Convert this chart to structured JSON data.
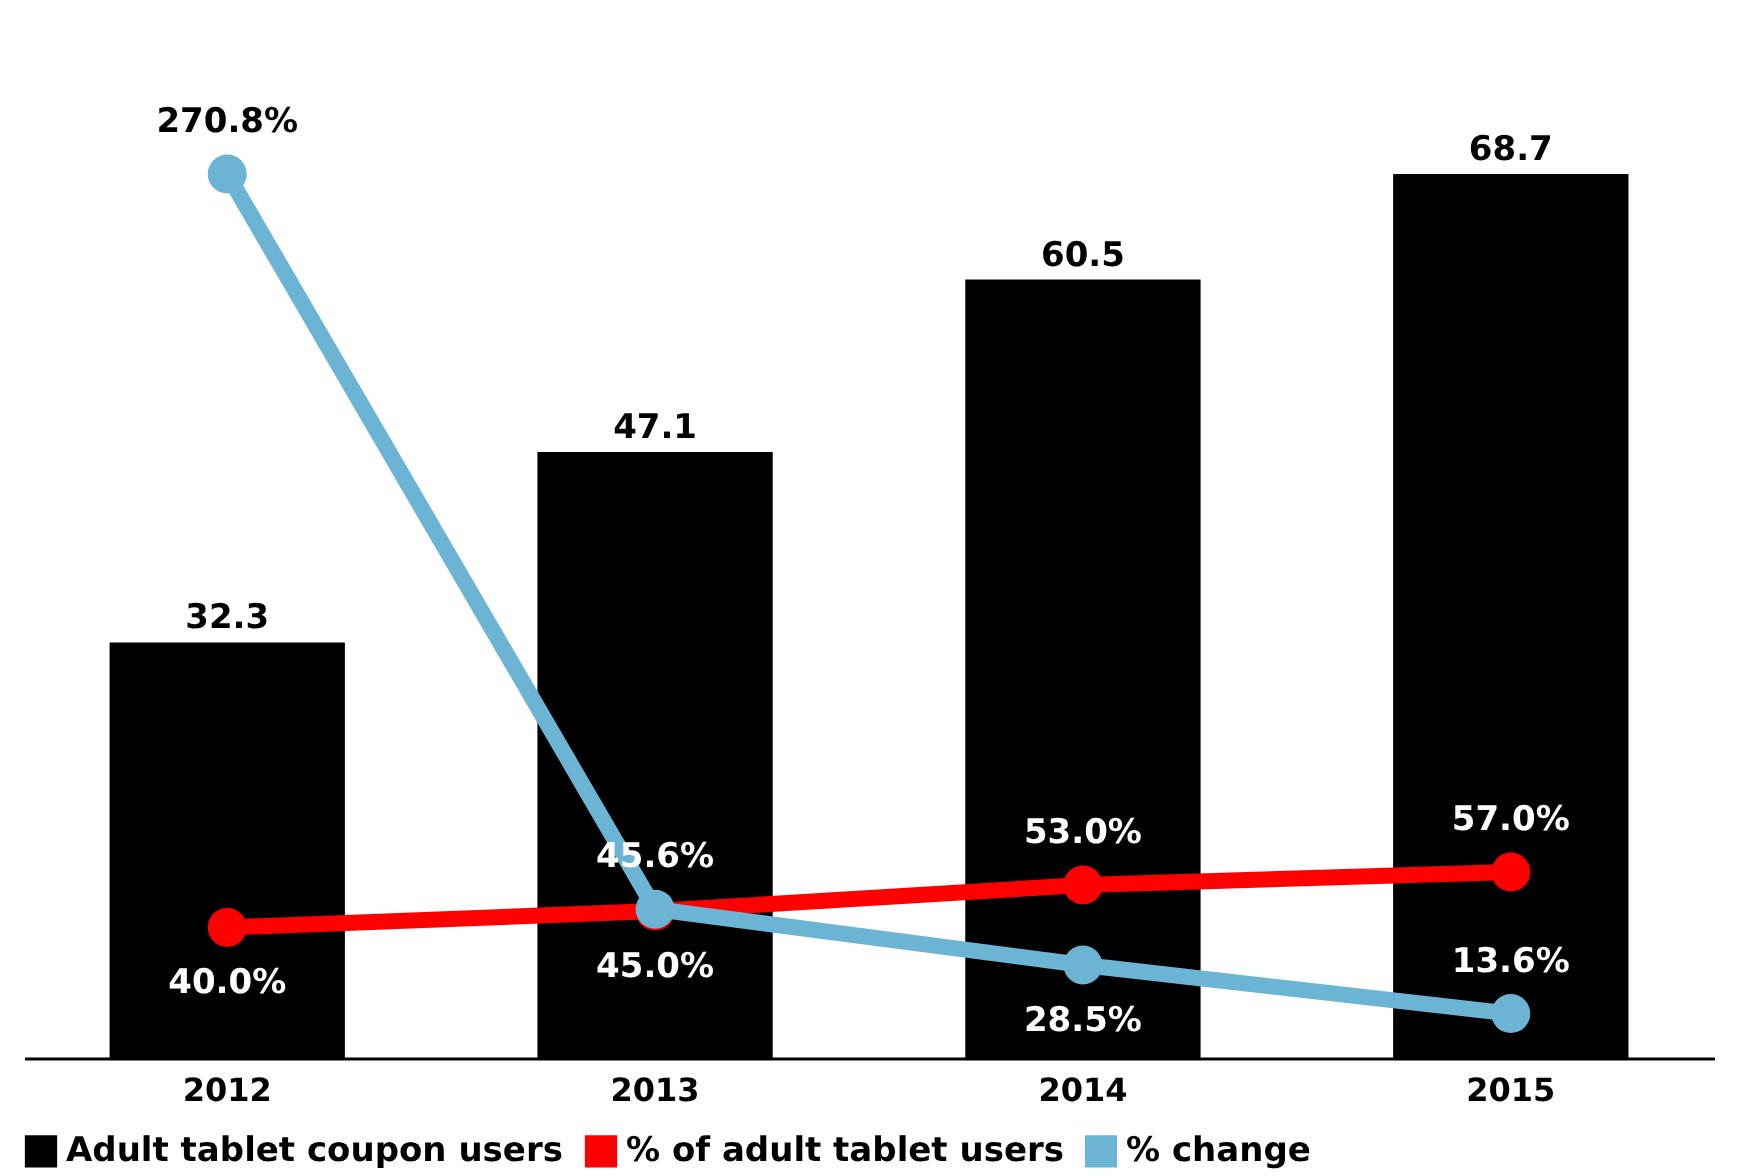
{
  "chart_data": {
    "type": "bar",
    "categories": [
      "2012",
      "2013",
      "2014",
      "2015"
    ],
    "series": [
      {
        "name": "Adult tablet coupon users",
        "color": "#000000",
        "values": [
          32.3,
          47.1,
          60.5,
          68.7
        ]
      },
      {
        "name": "% of adult tablet users",
        "type": "line",
        "axis": "y2",
        "color": "#ff0000",
        "values": [
          40.0,
          45.0,
          53.0,
          57.0
        ],
        "value_labels": [
          "40.0%",
          "45.0%",
          "53.0%",
          "57.0%"
        ]
      },
      {
        "name": "% change",
        "type": "line",
        "axis": "y2",
        "color": "#6cb4d4",
        "values": [
          270.8,
          45.6,
          28.5,
          13.6
        ],
        "value_labels": [
          "270.8%",
          "45.6%",
          "28.5%",
          "13.6%"
        ]
      }
    ],
    "data_labels": true,
    "tick_labels": "x",
    "legend": "bottom",
    "marker": "circle",
    "line_style": "solid"
  }
}
